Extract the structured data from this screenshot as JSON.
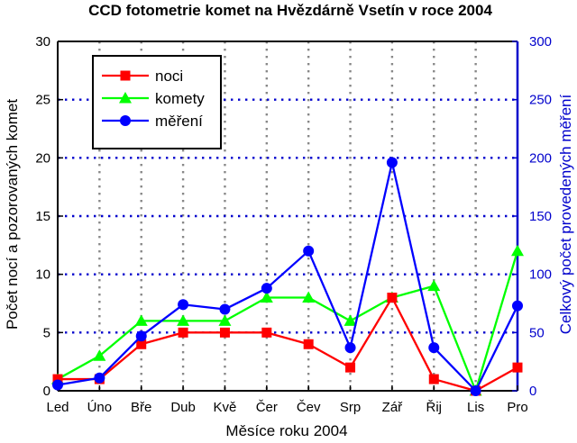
{
  "chart_data": {
    "type": "line",
    "title": "CCD fotometrie komet na Hvězdárně Vsetín v roce 2004",
    "xlabel": "Měsíce roku 2004",
    "ylabel": "Počet nocí a pozorovaných komet",
    "ylabel_right": "Celkový počet provedených měření",
    "categories": [
      "Led",
      "Úno",
      "Bře",
      "Dub",
      "Kvě",
      "Čer",
      "Čev",
      "Srp",
      "Zář",
      "Řij",
      "Lis",
      "Pro"
    ],
    "ylim": [
      0,
      30
    ],
    "ylim_right": [
      0,
      300
    ],
    "yticks": [
      "0",
      "5",
      "10",
      "15",
      "20",
      "25",
      "30"
    ],
    "yticks_right": [
      "0",
      "50",
      "100",
      "150",
      "200",
      "250",
      "300"
    ],
    "grid": true,
    "legend_position": "top-left",
    "series": [
      {
        "name": "noci",
        "axis": "left",
        "color": "#ff0000",
        "marker": "square",
        "values": [
          1,
          1,
          4,
          5,
          5,
          5,
          4,
          2,
          8,
          1,
          0,
          2
        ]
      },
      {
        "name": "komety",
        "axis": "left",
        "color": "#00ff00",
        "marker": "triangle",
        "values": [
          1,
          3,
          6,
          6,
          6,
          8,
          8,
          6,
          8,
          9,
          0,
          12
        ]
      },
      {
        "name": "měření",
        "axis": "right",
        "color": "#0000ff",
        "marker": "circle",
        "values": [
          5,
          11,
          47,
          74,
          70,
          88,
          120,
          37,
          196,
          37,
          0,
          73
        ]
      }
    ],
    "colors": {
      "axis_right": "#0000cc",
      "grid_gray": "#888888",
      "grid_blue": "#0000cc"
    }
  }
}
